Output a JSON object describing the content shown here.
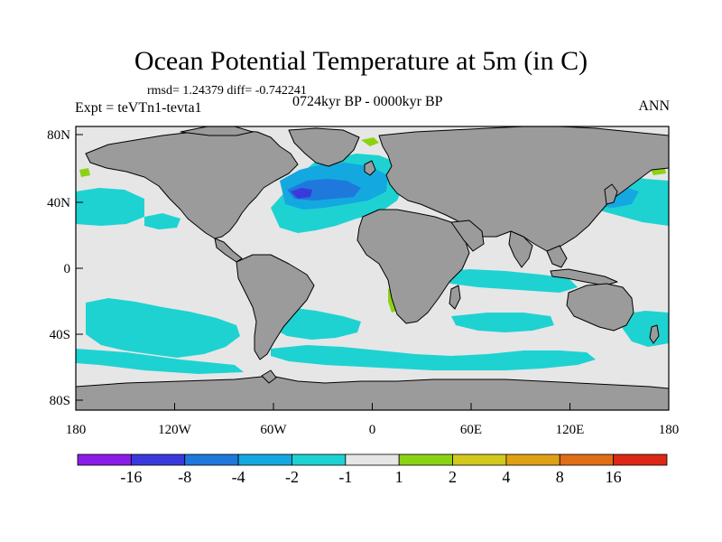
{
  "plot": {
    "title": "Ocean Potential Temperature at 5m (in C)",
    "stats": "rmsd= 1.24379 diff= -0.742241",
    "experiment": "Expt = teVTn1-tevta1",
    "period": "0724kyr BP - 0000kyr BP",
    "season": "ANN"
  },
  "map_axes": {
    "lon_ticks": [
      "180",
      "120W",
      "60W",
      "0",
      "60E",
      "120E",
      "180"
    ],
    "lat_ticks": [
      "80N",
      "40N",
      "0",
      "40S",
      "80S"
    ],
    "projection": "cylindrical equidistant",
    "lon_range": [
      -180,
      180
    ],
    "lat_range": [
      -90,
      90
    ]
  },
  "colorbar": {
    "labels": [
      "-16",
      "-8",
      "-4",
      "-2",
      "-1",
      "1",
      "2",
      "4",
      "8",
      "16"
    ],
    "colors": [
      "#8a1ee6",
      "#3a3adc",
      "#1f78dc",
      "#14a8e0",
      "#1ed2d2",
      "#e6e6e6",
      "#8cd214",
      "#d2c81e",
      "#e0a014",
      "#e06e14",
      "#dc2814"
    ]
  },
  "colors": {
    "land": "#9b9b9b",
    "no_change": "#e6e6e6",
    "cool_light": "#1ed2d2",
    "cool_mid": "#14a8e0",
    "cool_strong": "#1f78dc",
    "cool_deep": "#3a3adc",
    "warm_light": "#8cd214"
  }
}
